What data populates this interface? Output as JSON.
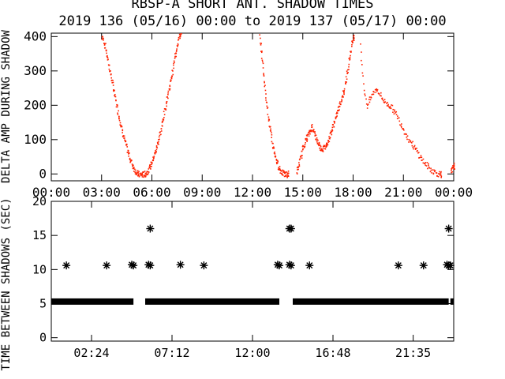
{
  "title": "RBSP-A SHORT ANT. SHADOW TIMES",
  "subtitle": "2019 136 (05/16) 00:00 to 2019 137 (05/17) 00:00",
  "colors": {
    "amplitude": "#ff2200",
    "shadow": "#000000",
    "axes": "#000000"
  },
  "chart_data": [
    {
      "type": "scatter",
      "panel": "top",
      "ylabel": "DELTA AMP DURING SHADOW",
      "x_unit": "hours",
      "xlim": [
        0,
        24
      ],
      "ylim": [
        -20,
        410
      ],
      "x_tick_labels": [
        "00:00",
        "03:00",
        "06:00",
        "09:00",
        "12:00",
        "15:00",
        "18:00",
        "21:00",
        "00:00"
      ],
      "x_tick_values": [
        0,
        3,
        6,
        9,
        12,
        15,
        18,
        21,
        24
      ],
      "y_tick_values": [
        0,
        100,
        200,
        300,
        400
      ],
      "y_tick_labels": [
        "0",
        "100",
        "200",
        "300",
        "400"
      ],
      "series": [
        {
          "x": [
            3.0,
            3.1,
            3.2,
            3.3,
            3.4,
            3.5,
            3.6,
            3.7,
            3.8,
            3.9,
            4.0,
            4.1,
            4.2,
            4.3,
            4.4,
            4.5,
            4.6,
            4.7,
            4.8,
            4.9,
            5.0,
            5.1,
            5.2,
            5.3,
            5.4,
            5.5,
            5.6,
            5.7,
            5.8,
            5.9,
            6.0,
            6.1,
            6.2,
            6.3,
            6.4,
            6.5,
            6.6,
            6.7,
            6.8,
            6.9,
            7.0,
            7.1,
            7.2,
            7.3,
            7.4,
            7.5,
            7.6,
            7.7
          ],
          "y": [
            400,
            390,
            370,
            345,
            320,
            295,
            270,
            245,
            220,
            195,
            172,
            150,
            128,
            108,
            90,
            72,
            56,
            42,
            30,
            18,
            9,
            3,
            0,
            0,
            0,
            0,
            2,
            8,
            16,
            26,
            38,
            52,
            68,
            86,
            106,
            128,
            150,
            175,
            200,
            225,
            250,
            275,
            300,
            330,
            355,
            380,
            400,
            410
          ]
        },
        {
          "x": [
            12.4,
            12.5,
            12.6,
            12.7,
            12.8,
            12.9,
            13.0,
            13.1,
            13.2,
            13.3,
            13.4,
            13.5,
            13.6,
            13.7,
            13.8,
            13.9,
            14.0,
            14.1
          ],
          "y": [
            400,
            360,
            310,
            260,
            215,
            175,
            140,
            108,
            80,
            58,
            40,
            26,
            15,
            8,
            3,
            0,
            0,
            2
          ]
        },
        {
          "x": [
            14.6,
            14.7,
            14.8,
            14.9,
            15.0,
            15.1,
            15.2,
            15.3,
            15.4,
            15.5,
            15.6,
            15.7,
            15.8,
            15.9,
            16.0,
            16.1,
            16.2,
            16.3,
            16.4,
            16.5,
            16.6,
            16.7,
            16.8,
            16.9,
            17.0,
            17.1,
            17.2,
            17.3,
            17.4,
            17.5,
            17.6,
            17.7,
            17.8,
            17.9,
            18.0
          ],
          "y": [
            5,
            20,
            40,
            60,
            80,
            95,
            105,
            115,
            125,
            140,
            130,
            115,
            100,
            90,
            80,
            75,
            75,
            80,
            90,
            100,
            115,
            130,
            145,
            160,
            175,
            190,
            205,
            220,
            240,
            260,
            290,
            320,
            350,
            380,
            400
          ]
        },
        {
          "x": [
            18.4,
            18.6,
            18.8,
            19.0,
            19.2,
            19.4,
            19.6,
            19.8,
            20.0,
            20.2,
            20.4,
            20.6,
            20.8,
            21.0,
            21.2,
            21.4,
            21.6,
            21.8,
            22.0,
            22.2,
            22.4,
            22.6,
            22.8,
            23.0,
            23.2
          ],
          "y": [
            380,
            260,
            200,
            220,
            240,
            250,
            230,
            215,
            205,
            200,
            185,
            170,
            150,
            130,
            110,
            95,
            80,
            65,
            50,
            35,
            25,
            15,
            8,
            3,
            0
          ]
        },
        {
          "x": [
            23.8,
            23.9,
            24.0
          ],
          "y": [
            5,
            15,
            25
          ]
        }
      ]
    },
    {
      "type": "scatter",
      "panel": "bottom",
      "ylabel": "TIME BETWEEN SHADOWS (SEC)",
      "x_unit": "hours",
      "xlim": [
        0,
        24
      ],
      "ylim": [
        -0.5,
        20
      ],
      "x_tick_labels": [
        "02:24",
        "07:12",
        "12:00",
        "16:48",
        "21:35"
      ],
      "x_tick_values": [
        2.4,
        7.2,
        12.0,
        16.8,
        21.583
      ],
      "y_tick_values": [
        0,
        5,
        10,
        15,
        20
      ],
      "y_tick_labels": [
        "0",
        "5",
        "10",
        "15",
        "20"
      ],
      "baseline": {
        "y": 5.3,
        "segments": [
          [
            0,
            4.9
          ],
          [
            5.6,
            13.6
          ],
          [
            14.4,
            23.7
          ],
          [
            23.8,
            24.0
          ]
        ]
      },
      "series": [
        {
          "x": [
            0.9,
            3.3,
            4.8,
            4.9,
            5.8,
            5.9,
            7.7,
            9.1,
            13.5,
            13.6,
            14.2,
            14.3,
            15.4,
            20.7,
            22.2,
            23.6,
            23.7,
            23.8
          ],
          "y": [
            10.6,
            10.6,
            10.7,
            10.6,
            10.7,
            10.6,
            10.7,
            10.6,
            10.7,
            10.6,
            10.7,
            10.6,
            10.6,
            10.6,
            10.6,
            10.7,
            10.6,
            10.6
          ]
        },
        {
          "x": [
            5.9,
            14.2,
            14.3,
            23.7
          ],
          "y": [
            16.0,
            16.0,
            16.0,
            16.0
          ]
        }
      ]
    }
  ]
}
